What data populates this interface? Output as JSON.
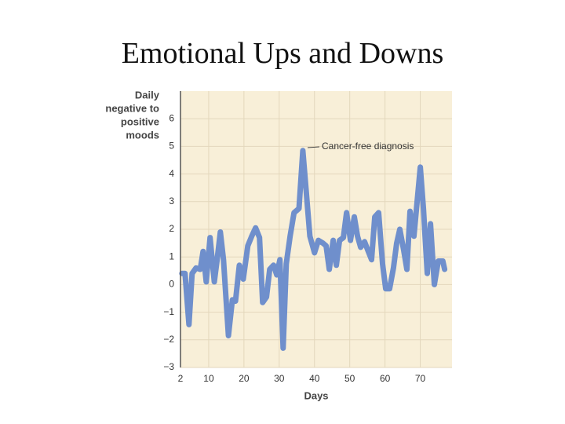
{
  "chart_data": {
    "type": "line",
    "title": "Emotional Ups and Downs",
    "ylabel": [
      "Daily",
      "negative to",
      "positive",
      "moods"
    ],
    "xlabel": "Days",
    "annotation": "Cancer-free diagnosis",
    "color": "#6f8fcc",
    "grid": true,
    "xlim": [
      2,
      79
    ],
    "ylim": [
      -3,
      7
    ],
    "xticks": [
      2,
      10,
      20,
      30,
      40,
      50,
      60,
      70
    ],
    "yticks": [
      {
        "value": -3,
        "label": "−3"
      },
      {
        "value": -2,
        "label": "−2"
      },
      {
        "value": -1,
        "label": "−1"
      },
      0,
      1,
      2,
      3,
      4,
      5,
      6
    ],
    "x": [
      2.4,
      3.3,
      4.4,
      5.3,
      6.4,
      7.6,
      8.4,
      9.3,
      10.4,
      11.6,
      12.4,
      13.3,
      14.2,
      15.6,
      16.7,
      17.6,
      18.7,
      19.8,
      21.1,
      22.2,
      23.3,
      24.4,
      25.3,
      26.4,
      27.3,
      28.4,
      29.3,
      30.2,
      31.1,
      32,
      33.1,
      34.2,
      35.6,
      36.7,
      37.6,
      38.7,
      40,
      41.1,
      42.4,
      43.3,
      44.2,
      45.3,
      46.2,
      47.1,
      48.2,
      49.1,
      50.2,
      51.3,
      52.2,
      53.1,
      54.2,
      55.1,
      56.2,
      57.1,
      58.2,
      59.3,
      60.2,
      61.3,
      62.4,
      63.3,
      64.2,
      65.3,
      66.2,
      67.1,
      68.2,
      70,
      70.9,
      72,
      72.9,
      74,
      75.1,
      76.4,
      76.9
    ],
    "values": [
      0.4,
      0.4,
      -1.45,
      0.4,
      0.6,
      0.55,
      1.2,
      0.1,
      1.7,
      0.1,
      0.9,
      1.9,
      0.9,
      -1.85,
      -0.55,
      -0.6,
      0.7,
      0.2,
      1.4,
      1.75,
      2.05,
      1.7,
      -0.65,
      -0.45,
      0.55,
      0.7,
      0.35,
      0.9,
      -2.3,
      0.75,
      1.75,
      2.6,
      2.75,
      4.85,
      3.45,
      1.75,
      1.15,
      1.6,
      1.5,
      1.4,
      0.55,
      1.6,
      0.7,
      1.6,
      1.7,
      2.6,
      1.6,
      2.45,
      1.75,
      1.35,
      1.55,
      1.25,
      0.9,
      2.45,
      2.6,
      0.75,
      -0.15,
      -0.15,
      0.6,
      1.5,
      2.0,
      1.25,
      0.55,
      2.65,
      1.75,
      4.25,
      2.75,
      0.4,
      2.2,
      0,
      0.85,
      0.85,
      0.55
    ]
  }
}
